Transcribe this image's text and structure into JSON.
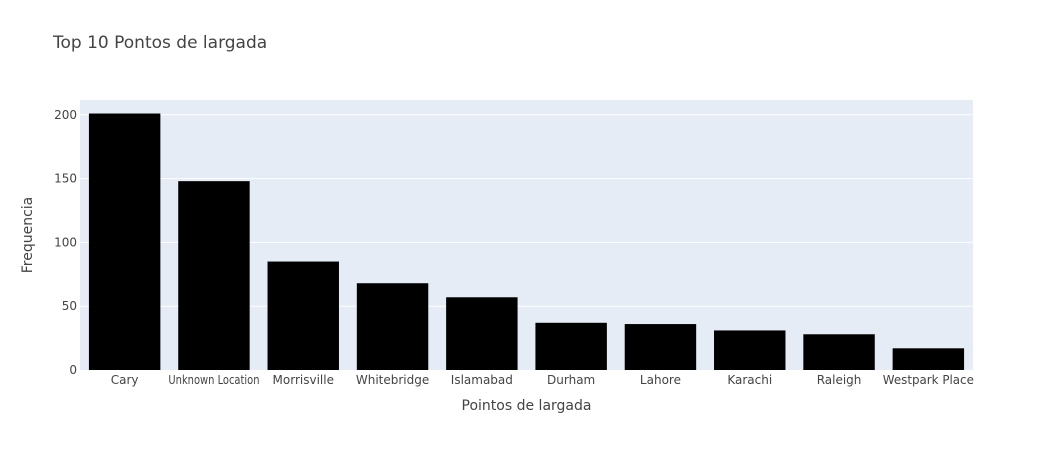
{
  "chart_data": {
    "type": "bar",
    "title": "Top 10 Pontos de largada",
    "xlabel": "Pointos de largada",
    "ylabel": "Frequencia",
    "categories": [
      "Cary",
      "Unknown Location",
      "Morrisville",
      "Whitebridge",
      "Islamabad",
      "Durham",
      "Lahore",
      "Karachi",
      "Raleigh",
      "Westpark Place"
    ],
    "values": [
      201,
      148,
      85,
      68,
      57,
      37,
      36,
      31,
      28,
      17
    ],
    "ylim": [
      0,
      211.6
    ],
    "yticks": [
      0,
      50,
      100,
      150,
      200
    ],
    "grid": true,
    "legend": "none",
    "colors": {
      "bar": "#000000",
      "plot_background": "#e5ecf6",
      "grid": "#ffffff",
      "text": "#444444"
    }
  }
}
